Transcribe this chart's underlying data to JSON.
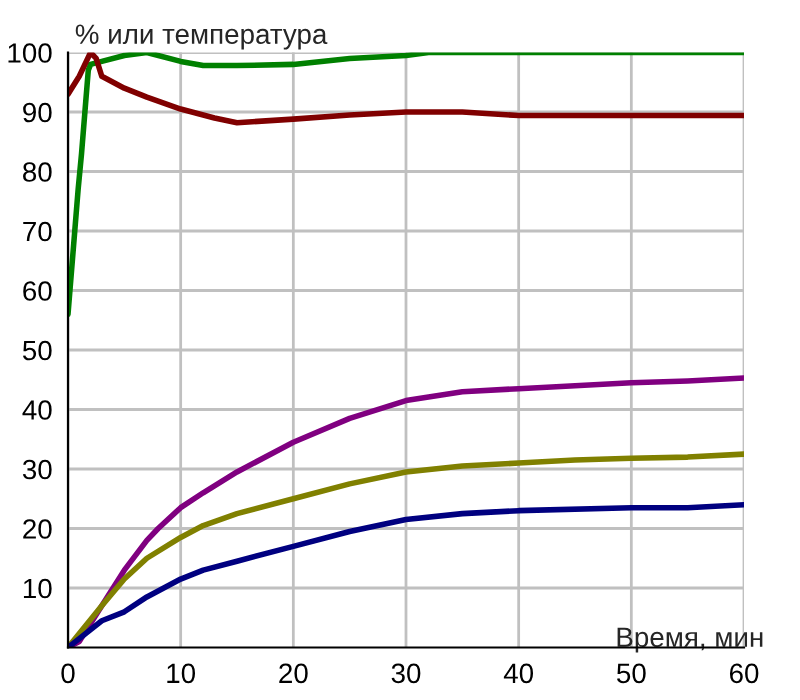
{
  "chart_data": {
    "type": "line",
    "xlabel": "Время, мин",
    "ylabel": "% или температура",
    "xlim": [
      0,
      60
    ],
    "ylim": [
      0,
      100
    ],
    "xticks": [
      0,
      10,
      20,
      30,
      40,
      50,
      60
    ],
    "yticks": [
      10,
      20,
      30,
      40,
      50,
      60,
      70,
      80,
      90,
      100
    ],
    "grid": true,
    "line_style": "solid",
    "marker": "none",
    "series": [
      {
        "color": "#008000",
        "x": [
          0,
          0.3,
          0.6,
          0.9,
          1.2,
          1.5,
          1.8,
          2,
          3,
          5,
          7,
          10,
          12,
          15,
          20,
          25,
          30,
          32,
          60
        ],
        "values": [
          56,
          63,
          70,
          77,
          83,
          90,
          97,
          98,
          98.5,
          99.5,
          100,
          98.5,
          97.8,
          97.8,
          98,
          99,
          99.5,
          100,
          100
        ]
      },
      {
        "color": "#800000",
        "x": [
          0,
          1,
          2,
          2.5,
          3,
          5,
          7,
          10,
          13,
          15,
          20,
          25,
          30,
          35,
          40,
          50,
          60
        ],
        "values": [
          93,
          96,
          100,
          99,
          96,
          94,
          92.5,
          90.5,
          89,
          88.2,
          88.8,
          89.5,
          90,
          90,
          89.4,
          89.4,
          89.4
        ]
      },
      {
        "color": "#800080",
        "x": [
          0,
          1,
          3,
          5,
          7,
          8,
          10,
          12,
          15,
          20,
          25,
          30,
          35,
          40,
          45,
          50,
          55,
          60
        ],
        "values": [
          0,
          1,
          7,
          13,
          18,
          20,
          23.5,
          26,
          29.5,
          34.5,
          38.5,
          41.5,
          43,
          43.5,
          44,
          44.5,
          44.8,
          45.3
        ]
      },
      {
        "color": "#808000",
        "x": [
          0,
          3,
          5,
          7,
          10,
          12,
          15,
          20,
          25,
          30,
          35,
          40,
          45,
          50,
          55,
          60
        ],
        "values": [
          0,
          7,
          11.5,
          15,
          18.5,
          20.5,
          22.5,
          25,
          27.5,
          29.5,
          30.5,
          31,
          31.5,
          31.8,
          32,
          32.5
        ]
      },
      {
        "color": "#000080",
        "x": [
          0,
          1,
          3,
          5,
          7,
          10,
          12,
          15,
          20,
          25,
          30,
          35,
          40,
          50,
          55,
          60
        ],
        "values": [
          0,
          1.5,
          4.5,
          6,
          8.5,
          11.5,
          13,
          14.5,
          17,
          19.5,
          21.5,
          22.5,
          23,
          23.5,
          23.5,
          24
        ]
      }
    ]
  }
}
